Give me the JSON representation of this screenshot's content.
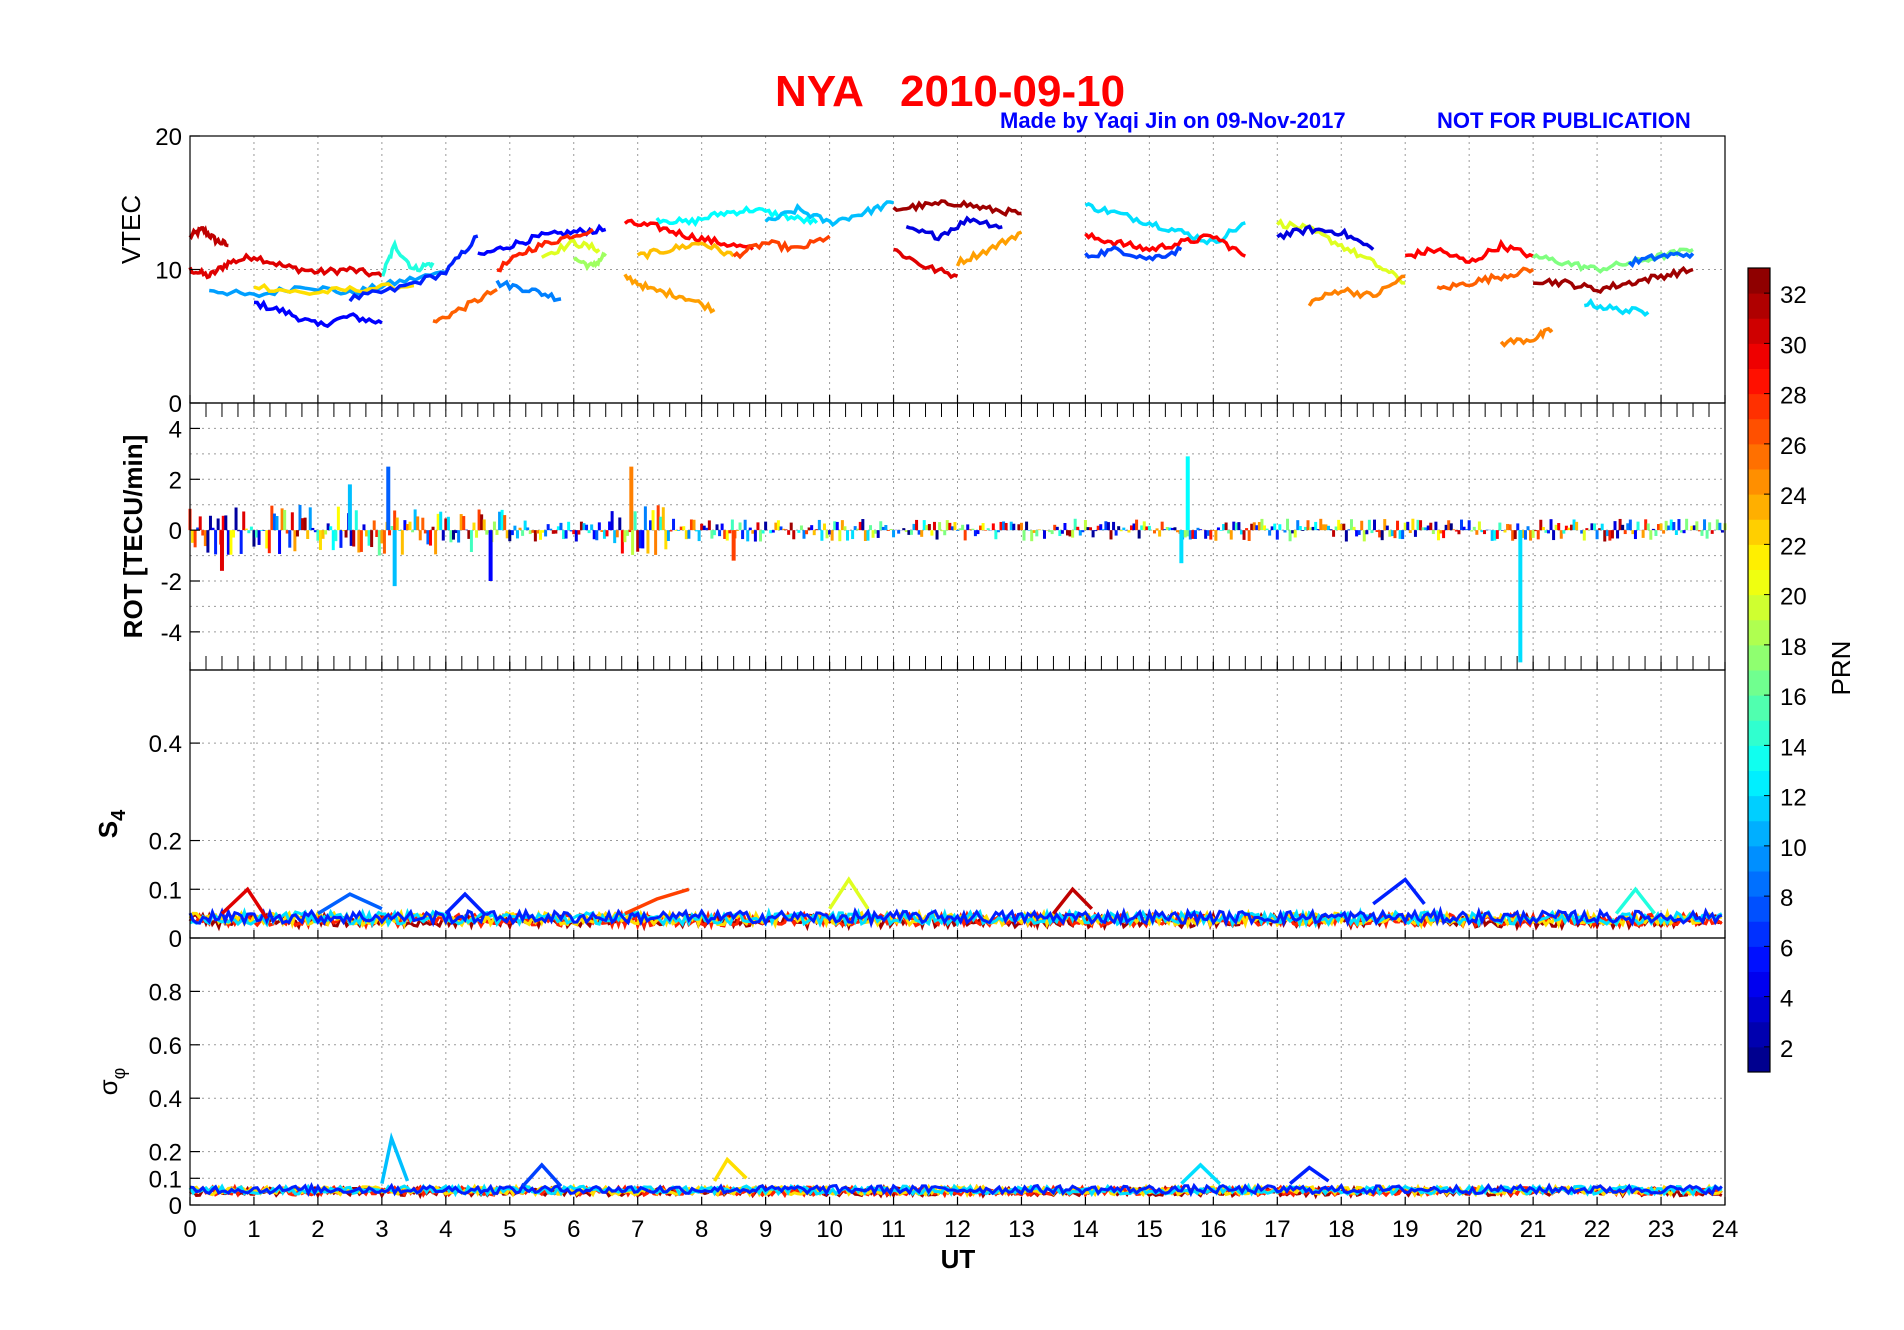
{
  "title": {
    "station": "NYA",
    "date": "2010-09-10",
    "credit": "Made by Yaqi Jin on 09-Nov-2017",
    "notice": "NOT FOR PUBLICATION",
    "title_color": "#ff0000",
    "credit_color": "#0000ff"
  },
  "chart_data": [
    {
      "id": "vtec",
      "type": "line",
      "ylabel": "VTEC",
      "ylim": [
        0,
        20
      ],
      "yticks": [
        0,
        10,
        20
      ],
      "xlim": [
        0,
        24
      ],
      "grid": true,
      "segments": [
        {
          "prn": 31,
          "x": [
            0.0,
            0.2,
            0.4,
            0.6
          ],
          "y": [
            12.5,
            13.0,
            12.2,
            11.8
          ]
        },
        {
          "prn": 30,
          "x": [
            0.0,
            0.3,
            0.6,
            1.0,
            1.5,
            2.0,
            2.5,
            3.0
          ],
          "y": [
            10.0,
            9.5,
            10.5,
            11.0,
            10.2,
            9.8,
            10.0,
            9.5
          ]
        },
        {
          "prn": 5,
          "x": [
            1.0,
            1.5,
            2.0,
            2.5,
            3.0
          ],
          "y": [
            7.5,
            6.8,
            5.8,
            6.5,
            6.0
          ]
        },
        {
          "prn": 10,
          "x": [
            0.3,
            1.0,
            1.8,
            2.5,
            3.2,
            4.0
          ],
          "y": [
            8.5,
            8.0,
            8.8,
            8.2,
            9.0,
            9.8
          ]
        },
        {
          "prn": 22,
          "x": [
            1.0,
            1.8,
            2.5,
            3.5
          ],
          "y": [
            8.8,
            8.2,
            8.5,
            8.8
          ]
        },
        {
          "prn": 6,
          "x": [
            2.5,
            3.2,
            4.0,
            4.5
          ],
          "y": [
            7.8,
            8.5,
            9.8,
            12.5
          ]
        },
        {
          "prn": 14,
          "x": [
            3.0,
            3.2,
            3.5,
            3.8
          ],
          "y": [
            9.5,
            11.8,
            10.0,
            10.5
          ]
        },
        {
          "prn": 26,
          "x": [
            3.8,
            4.3,
            4.8
          ],
          "y": [
            6.0,
            7.2,
            8.5
          ]
        },
        {
          "prn": 5,
          "x": [
            4.5,
            5.0,
            5.5,
            6.0,
            6.5
          ],
          "y": [
            11.0,
            11.8,
            12.5,
            12.8,
            13.0
          ]
        },
        {
          "prn": 28,
          "x": [
            4.8,
            5.3,
            5.8,
            6.3
          ],
          "y": [
            10.0,
            11.5,
            12.3,
            13.0
          ]
        },
        {
          "prn": 9,
          "x": [
            4.8,
            5.3,
            5.8
          ],
          "y": [
            9.0,
            8.5,
            7.8
          ]
        },
        {
          "prn": 20,
          "x": [
            5.5,
            6.0,
            6.4
          ],
          "y": [
            11.0,
            12.0,
            11.5
          ]
        },
        {
          "prn": 18,
          "x": [
            6.0,
            6.3,
            6.5
          ],
          "y": [
            10.8,
            10.2,
            11.2
          ]
        },
        {
          "prn": 29,
          "x": [
            6.8,
            7.3,
            7.8,
            8.3,
            8.8
          ],
          "y": [
            13.5,
            13.2,
            12.5,
            12.0,
            11.5
          ]
        },
        {
          "prn": 24,
          "x": [
            6.8,
            7.2,
            7.7,
            8.2
          ],
          "y": [
            9.5,
            8.5,
            8.0,
            7.0
          ]
        },
        {
          "prn": 13,
          "x": [
            7.3,
            7.8,
            8.3,
            8.8,
            9.3,
            9.8
          ],
          "y": [
            13.8,
            13.5,
            14.2,
            14.5,
            14.0,
            13.5
          ]
        },
        {
          "prn": 23,
          "x": [
            7.0,
            7.5,
            8.0,
            8.5
          ],
          "y": [
            11.0,
            11.5,
            12.0,
            11.0
          ]
        },
        {
          "prn": 27,
          "x": [
            8.5,
            9.0,
            9.5,
            10.0
          ],
          "y": [
            11.0,
            12.0,
            11.5,
            12.5
          ]
        },
        {
          "prn": 11,
          "x": [
            9.0,
            9.5,
            10.0,
            10.5,
            11.0
          ],
          "y": [
            13.5,
            14.5,
            13.5,
            14.2,
            15.0
          ]
        },
        {
          "prn": 32,
          "x": [
            11.0,
            11.5,
            12.0,
            12.5,
            13.0
          ],
          "y": [
            14.5,
            14.8,
            15.0,
            14.5,
            14.2
          ]
        },
        {
          "prn": 4,
          "x": [
            11.2,
            11.7,
            12.2,
            12.7
          ],
          "y": [
            13.0,
            12.5,
            13.8,
            13.2
          ]
        },
        {
          "prn": 30,
          "x": [
            11.0,
            11.5,
            12.0
          ],
          "y": [
            11.5,
            10.2,
            9.5
          ]
        },
        {
          "prn": 24,
          "x": [
            12.0,
            12.5,
            13.0
          ],
          "y": [
            10.5,
            11.5,
            12.8
          ]
        },
        {
          "prn": 12,
          "x": [
            14.0,
            14.5,
            15.0,
            15.5,
            16.0,
            16.5
          ],
          "y": [
            14.8,
            14.2,
            13.5,
            12.8,
            12.0,
            13.5
          ]
        },
        {
          "prn": 29,
          "x": [
            14.0,
            14.5,
            15.0,
            15.5,
            16.0,
            16.5
          ],
          "y": [
            12.5,
            12.0,
            11.5,
            12.0,
            12.5,
            11.0
          ]
        },
        {
          "prn": 7,
          "x": [
            14.0,
            14.5,
            15.0,
            15.5
          ],
          "y": [
            11.0,
            11.5,
            10.8,
            11.5
          ]
        },
        {
          "prn": 20,
          "x": [
            17.0,
            17.5,
            18.0,
            18.5,
            19.0
          ],
          "y": [
            13.5,
            13.0,
            11.8,
            10.5,
            9.0
          ]
        },
        {
          "prn": 4,
          "x": [
            17.0,
            17.5,
            18.0,
            18.5
          ],
          "y": [
            12.5,
            13.0,
            12.8,
            11.5
          ]
        },
        {
          "prn": 25,
          "x": [
            17.5,
            18.0,
            18.5,
            19.0
          ],
          "y": [
            7.5,
            8.5,
            8.0,
            9.5
          ]
        },
        {
          "prn": 29,
          "x": [
            19.0,
            19.5,
            20.0,
            20.5,
            21.0
          ],
          "y": [
            11.0,
            11.5,
            10.5,
            11.8,
            11.0
          ]
        },
        {
          "prn": 26,
          "x": [
            19.5,
            20.0,
            20.5,
            21.0
          ],
          "y": [
            8.5,
            9.0,
            9.5,
            10.0
          ]
        },
        {
          "prn": 25,
          "x": [
            20.5,
            21.0,
            21.3
          ],
          "y": [
            4.5,
            4.8,
            5.5
          ]
        },
        {
          "prn": 17,
          "x": [
            21.0,
            21.5,
            22.0,
            22.5,
            23.0,
            23.5
          ],
          "y": [
            11.0,
            10.5,
            10.0,
            10.5,
            11.0,
            11.5
          ]
        },
        {
          "prn": 12,
          "x": [
            21.8,
            22.3,
            22.8
          ],
          "y": [
            7.5,
            7.0,
            6.8
          ]
        },
        {
          "prn": 32,
          "x": [
            21.0,
            21.5,
            22.0,
            22.5,
            23.0,
            23.5
          ],
          "y": [
            9.2,
            9.0,
            8.5,
            9.0,
            9.5,
            10.0
          ]
        },
        {
          "prn": 8,
          "x": [
            22.5,
            23.0,
            23.5
          ],
          "y": [
            10.5,
            11.0,
            11.2
          ]
        }
      ]
    },
    {
      "id": "rot",
      "type": "bar",
      "ylabel": "ROT [TECU/min]",
      "ylim": [
        -5.5,
        5
      ],
      "yticks": [
        -4,
        -2,
        0,
        2,
        4
      ],
      "xlim": [
        0,
        24
      ],
      "grid": true,
      "spikes": [
        {
          "x": 2.5,
          "y": 1.8,
          "prn": 11
        },
        {
          "x": 3.1,
          "y": 2.5,
          "prn": 8
        },
        {
          "x": 3.2,
          "y": -2.2,
          "prn": 11
        },
        {
          "x": 4.7,
          "y": -2.0,
          "prn": 5
        },
        {
          "x": 6.9,
          "y": 2.5,
          "prn": 25
        },
        {
          "x": 15.6,
          "y": 2.9,
          "prn": 13
        },
        {
          "x": 20.8,
          "y": -5.2,
          "prn": 12
        },
        {
          "x": 0.5,
          "y": -1.6,
          "prn": 30
        },
        {
          "x": 8.5,
          "y": -1.2,
          "prn": 27
        },
        {
          "x": 15.5,
          "y": -1.3,
          "prn": 12
        }
      ]
    },
    {
      "id": "s4",
      "type": "line",
      "ylabel": "S4",
      "ylim": [
        0,
        0.55
      ],
      "yticks": [
        0,
        0.1,
        0.2,
        0.4
      ],
      "xlim": [
        0,
        24
      ],
      "grid": true,
      "segments": [
        {
          "prn": 30,
          "x": [
            0.5,
            0.9,
            1.2
          ],
          "y": [
            0.05,
            0.1,
            0.04
          ]
        },
        {
          "prn": 8,
          "x": [
            2.0,
            2.5,
            3.0
          ],
          "y": [
            0.05,
            0.09,
            0.06
          ]
        },
        {
          "prn": 6,
          "x": [
            4.0,
            4.3,
            4.6
          ],
          "y": [
            0.05,
            0.09,
            0.05
          ]
        },
        {
          "prn": 27,
          "x": [
            6.8,
            7.3,
            7.8
          ],
          "y": [
            0.05,
            0.08,
            0.1
          ]
        },
        {
          "prn": 20,
          "x": [
            10.0,
            10.3,
            10.6
          ],
          "y": [
            0.06,
            0.12,
            0.06
          ]
        },
        {
          "prn": 31,
          "x": [
            13.5,
            13.8,
            14.1
          ],
          "y": [
            0.05,
            0.1,
            0.06
          ]
        },
        {
          "prn": 6,
          "x": [
            18.5,
            19.0,
            19.3
          ],
          "y": [
            0.07,
            0.12,
            0.07
          ]
        },
        {
          "prn": 14,
          "x": [
            22.3,
            22.6,
            22.9
          ],
          "y": [
            0.05,
            0.1,
            0.05
          ]
        }
      ]
    },
    {
      "id": "sigma_phi",
      "type": "line",
      "ylabel": "σφ",
      "ylim": [
        0,
        1
      ],
      "yticks": [
        0,
        0.1,
        0.2,
        0.4,
        0.6,
        0.8
      ],
      "xlim": [
        0,
        24
      ],
      "xticks": [
        0,
        1,
        2,
        3,
        4,
        5,
        6,
        7,
        8,
        9,
        10,
        11,
        12,
        13,
        14,
        15,
        16,
        17,
        18,
        19,
        20,
        21,
        22,
        23,
        24
      ],
      "xlabel": "UT",
      "grid": true,
      "segments": [
        {
          "prn": 11,
          "x": [
            3.0,
            3.15,
            3.4
          ],
          "y": [
            0.08,
            0.25,
            0.09
          ]
        },
        {
          "prn": 7,
          "x": [
            5.2,
            5.5,
            5.8
          ],
          "y": [
            0.07,
            0.15,
            0.07
          ]
        },
        {
          "prn": 22,
          "x": [
            8.2,
            8.4,
            8.7
          ],
          "y": [
            0.09,
            0.17,
            0.1
          ]
        },
        {
          "prn": 12,
          "x": [
            15.5,
            15.8,
            16.1
          ],
          "y": [
            0.08,
            0.15,
            0.08
          ]
        },
        {
          "prn": 6,
          "x": [
            17.2,
            17.5,
            17.8
          ],
          "y": [
            0.08,
            0.14,
            0.09
          ]
        }
      ]
    }
  ],
  "colorbar": {
    "label": "PRN",
    "ticks": [
      2,
      4,
      6,
      8,
      10,
      12,
      14,
      16,
      18,
      20,
      22,
      24,
      26,
      28,
      30,
      32
    ],
    "range": [
      1,
      33
    ],
    "colormap": "jet"
  }
}
